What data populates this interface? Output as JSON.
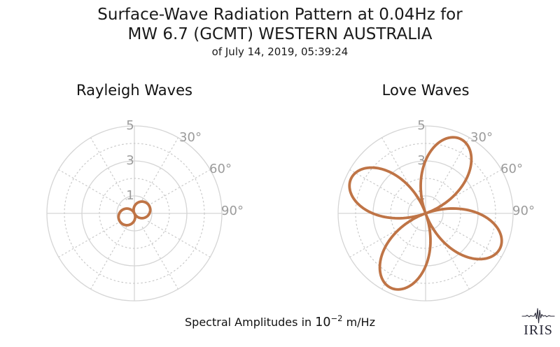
{
  "title": {
    "line1": "Surface-Wave Radiation Pattern at 0.04Hz for",
    "line2": "MW 6.7 (GCMT) WESTERN AUSTRALIA",
    "line3": "of July 14, 2019, 05:39:24"
  },
  "caption": {
    "prefix": "Spectral Amplitudes in",
    "base": "10",
    "exponent": "−2",
    "suffix": "m/Hz"
  },
  "logo": {
    "text": "IRIS"
  },
  "colors": {
    "pattern_line": "#bf7446",
    "grid_solid": "#d5d5d5",
    "grid_dotted": "#c9c9c9",
    "tick_label": "#9b9b9b",
    "logo": "#272736"
  },
  "chart_data": [
    {
      "type": "line",
      "projection": "polar",
      "title": "Rayleigh Waves",
      "r_axis": {
        "max": 5,
        "ticks_solid": [
          1,
          3,
          5
        ],
        "ticks_dotted": [
          2,
          4
        ],
        "tick_labels": [
          "1",
          "3",
          "5"
        ]
      },
      "theta_axis": {
        "spoke_step_deg": 30,
        "labels": [
          {
            "angle_deg": 30,
            "text": "30°"
          },
          {
            "angle_deg": 60,
            "text": "60°"
          },
          {
            "angle_deg": 90,
            "text": "90°"
          }
        ]
      },
      "pattern": {
        "shape": "cos",
        "model": "r(az) = A·|cos(az − phi)|",
        "A": 0.95,
        "phi_deg": 65,
        "lobe_azimuths_deg": [
          65,
          245
        ],
        "max_amplitude": 0.95,
        "units": "10^-2 m/Hz"
      }
    },
    {
      "type": "line",
      "projection": "polar",
      "title": "Love Waves",
      "r_axis": {
        "max": 5,
        "ticks_solid": [
          1,
          3,
          5
        ],
        "ticks_dotted": [
          2,
          4
        ],
        "tick_labels": [
          "1",
          "3",
          "5"
        ]
      },
      "theta_axis": {
        "spoke_step_deg": 30,
        "labels": [
          {
            "angle_deg": 30,
            "text": "30°"
          },
          {
            "angle_deg": 60,
            "text": "60°"
          },
          {
            "angle_deg": 90,
            "text": "90°"
          }
        ]
      },
      "pattern": {
        "shape": "sin2",
        "model": "r(az) = A·|sin(2(az − phi))|",
        "A": 4.7,
        "phi_deg": -20,
        "lobe_azimuths_deg": [
          25,
          115,
          205,
          295
        ],
        "max_amplitude": 4.7,
        "units": "10^-2 m/Hz"
      }
    }
  ]
}
